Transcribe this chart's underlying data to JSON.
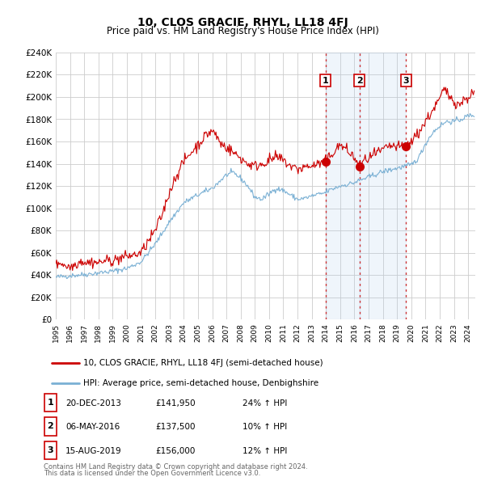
{
  "title": "10, CLOS GRACIE, RHYL, LL18 4FJ",
  "subtitle": "Price paid vs. HM Land Registry's House Price Index (HPI)",
  "xlim_start": 1995.0,
  "xlim_end": 2024.5,
  "ylim_min": 0,
  "ylim_max": 240000,
  "ytick_step": 20000,
  "line1_color": "#cc0000",
  "line2_color": "#7ab0d4",
  "sale_color": "#cc0000",
  "sale_marker_size": 7,
  "vline_color": "#cc3333",
  "background_color": "#ffffff",
  "grid_color": "#cccccc",
  "shade_color": "#ddeeff",
  "legend_label1": "10, CLOS GRACIE, RHYL, LL18 4FJ (semi-detached house)",
  "legend_label2": "HPI: Average price, semi-detached house, Denbighshire",
  "sale1_date": "20-DEC-2013",
  "sale1_year": 2013.97,
  "sale1_price": 141950,
  "sale1_pct": "24%",
  "sale2_date": "06-MAY-2016",
  "sale2_year": 2016.35,
  "sale2_price": 137500,
  "sale2_pct": "10%",
  "sale3_date": "15-AUG-2019",
  "sale3_year": 2019.62,
  "sale3_price": 156000,
  "sale3_pct": "12%",
  "footer_line1": "Contains HM Land Registry data © Crown copyright and database right 2024.",
  "footer_line2": "This data is licensed under the Open Government Licence v3.0."
}
